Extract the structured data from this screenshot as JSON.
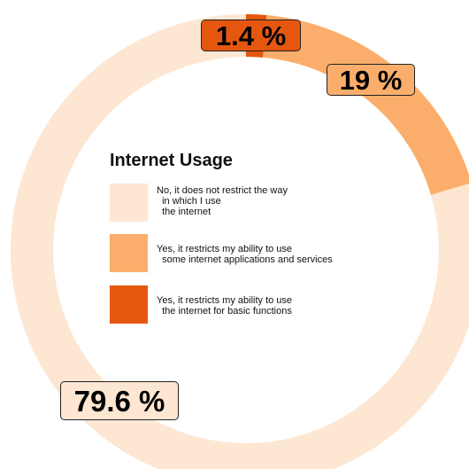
{
  "chart_data": {
    "type": "donut",
    "title": "Internet Usage",
    "categories": [
      "No, it does not restrict the way\n  in which I use\n  the internet",
      "Yes, it restricts my ability to use\n  some internet applications and services",
      "Yes, it restricts my ability to use\n  the internet for basic functions"
    ],
    "values": [
      79.6,
      19,
      1.4
    ],
    "value_labels": [
      "79.6 %",
      "19 %",
      "1.4 %"
    ],
    "colors": [
      "#fde6d2",
      "#fbae6b",
      "#e5570f"
    ],
    "legend_position": "center"
  }
}
